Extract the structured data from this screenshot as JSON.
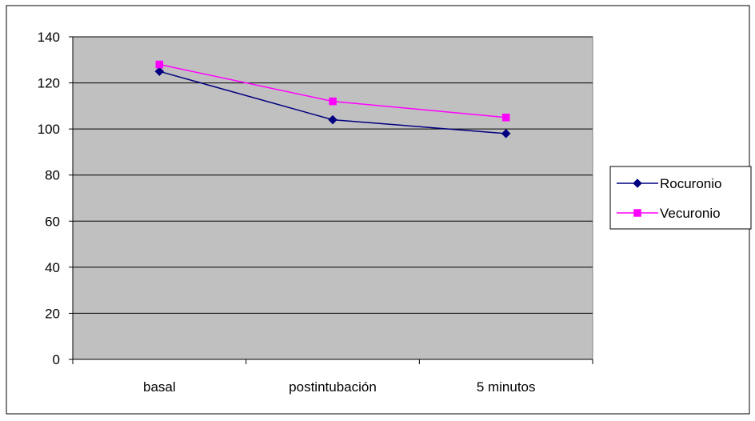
{
  "chart_data": {
    "type": "line",
    "categories": [
      "basal",
      "postintubación",
      "5 minutos"
    ],
    "series": [
      {
        "name": "Rocuronio",
        "values": [
          125,
          104,
          98
        ],
        "color": "#000080",
        "marker": "diamond"
      },
      {
        "name": "Vecuronio",
        "values": [
          128,
          112,
          105
        ],
        "color": "#ff00ff",
        "marker": "square"
      }
    ],
    "ylim": [
      0,
      140
    ],
    "yticks": [
      0,
      20,
      40,
      60,
      80,
      100,
      120,
      140
    ],
    "grid": true,
    "plot_background": "#c0c0c0",
    "legend": "right"
  }
}
